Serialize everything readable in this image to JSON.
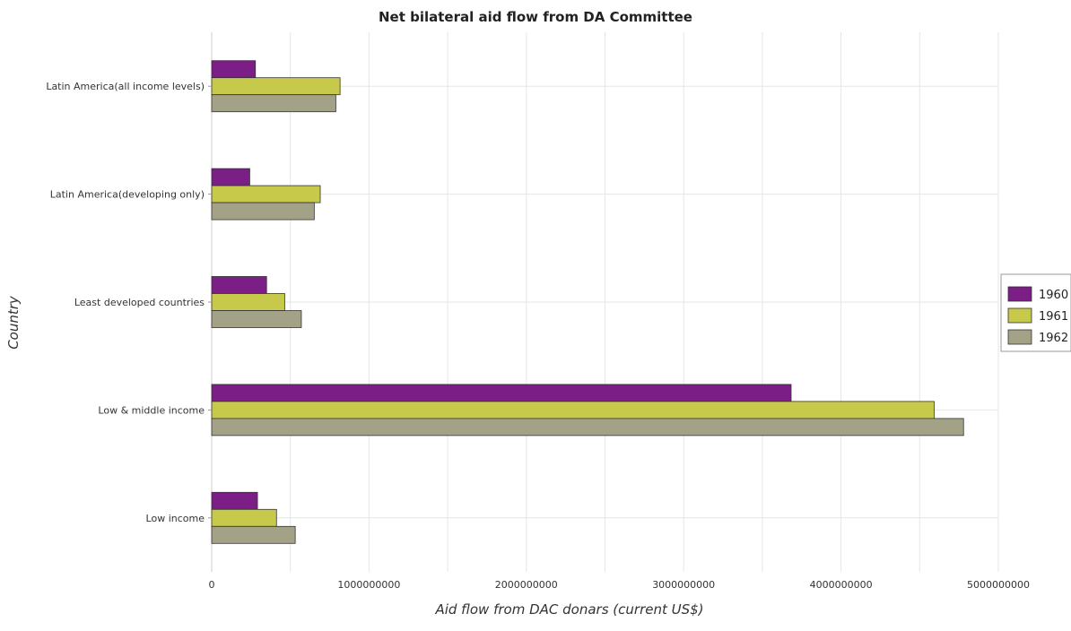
{
  "chart_data": {
    "type": "bar",
    "orientation": "horizontal",
    "title": "Net bilateral aid flow from DA Committee",
    "xlabel": "Aid flow from DAC donars (current US$)",
    "ylabel": "Country",
    "categories": [
      "Latin America(all income levels)",
      "Latin America(developing only)",
      "Least developed countries",
      "Low & middle income",
      "Low income"
    ],
    "series": [
      {
        "name": "1960",
        "color": "#7b1f86",
        "values": [
          278000000,
          242000000,
          349000000,
          3683000000,
          291000000
        ]
      },
      {
        "name": "1961",
        "color": "#c7c94a",
        "values": [
          816000000,
          690000000,
          464000000,
          4592000000,
          412000000
        ]
      },
      {
        "name": "1962",
        "color": "#a3a186",
        "values": [
          789000000,
          652000000,
          570000000,
          4779000000,
          531000000
        ]
      }
    ],
    "xlim": [
      0,
      5000000000
    ],
    "xticks": [
      0,
      1000000000,
      2000000000,
      3000000000,
      4000000000,
      5000000000
    ],
    "xtick_labels": [
      "0",
      "1000000000",
      "2000000000",
      "3000000000",
      "4000000000",
      "5000000000"
    ],
    "grid": true,
    "legend_position": "right"
  }
}
